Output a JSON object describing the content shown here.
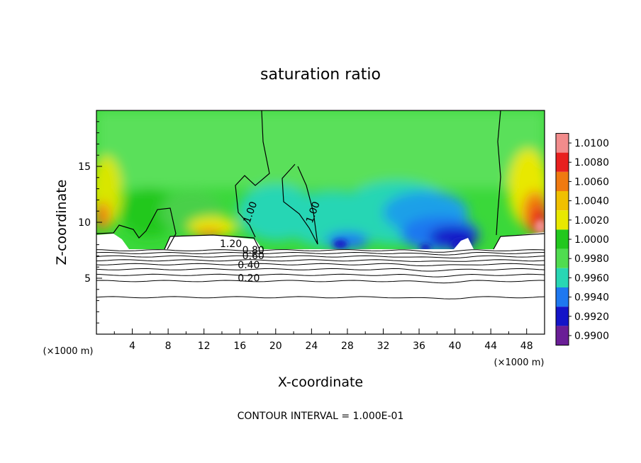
{
  "chart_data": {
    "type": "heatmap",
    "title": "saturation ratio",
    "xlabel": "X-coordinate",
    "ylabel": "Z-coordinate",
    "x_unit": "(×1000 m)",
    "y_unit": "(×1000 m)",
    "xlim": [
      0,
      50
    ],
    "ylim": [
      0,
      20
    ],
    "x_ticks": [
      4,
      8,
      12,
      16,
      20,
      24,
      28,
      32,
      36,
      40,
      44,
      48
    ],
    "y_ticks": [
      5,
      10,
      15
    ],
    "footer": "CONTOUR INTERVAL = 1.000E-01",
    "colorbar": {
      "labels": [
        "1.0100",
        "1.0080",
        "1.0060",
        "1.0040",
        "1.0020",
        "1.0000",
        "0.9980",
        "0.9960",
        "0.9940",
        "0.9920",
        "0.9900"
      ],
      "colors": [
        "#f28c8c",
        "#e8201e",
        "#f07a10",
        "#f0c000",
        "#e8e800",
        "#22c81e",
        "#50dc50",
        "#28d6b4",
        "#1e78f0",
        "#1414c8",
        "#6a1e96"
      ]
    },
    "contours": [
      {
        "label": "1.00",
        "x": 17.5,
        "y": 10.8
      },
      {
        "label": "1.00",
        "x": 24.5,
        "y": 10.8
      },
      {
        "label": "1.20",
        "x": 15.0,
        "y": 7.8
      },
      {
        "label": "0.80",
        "x": 17.5,
        "y": 7.2
      },
      {
        "label": "0.60",
        "x": 17.5,
        "y": 6.7
      },
      {
        "label": "0.40",
        "x": 17.0,
        "y": 5.9
      },
      {
        "label": "0.20",
        "x": 17.0,
        "y": 4.7
      }
    ],
    "contour_levels_z": [
      3.3,
      4.75,
      5.3,
      5.8,
      6.25,
      6.6,
      6.95,
      7.25,
      7.5
    ]
  }
}
